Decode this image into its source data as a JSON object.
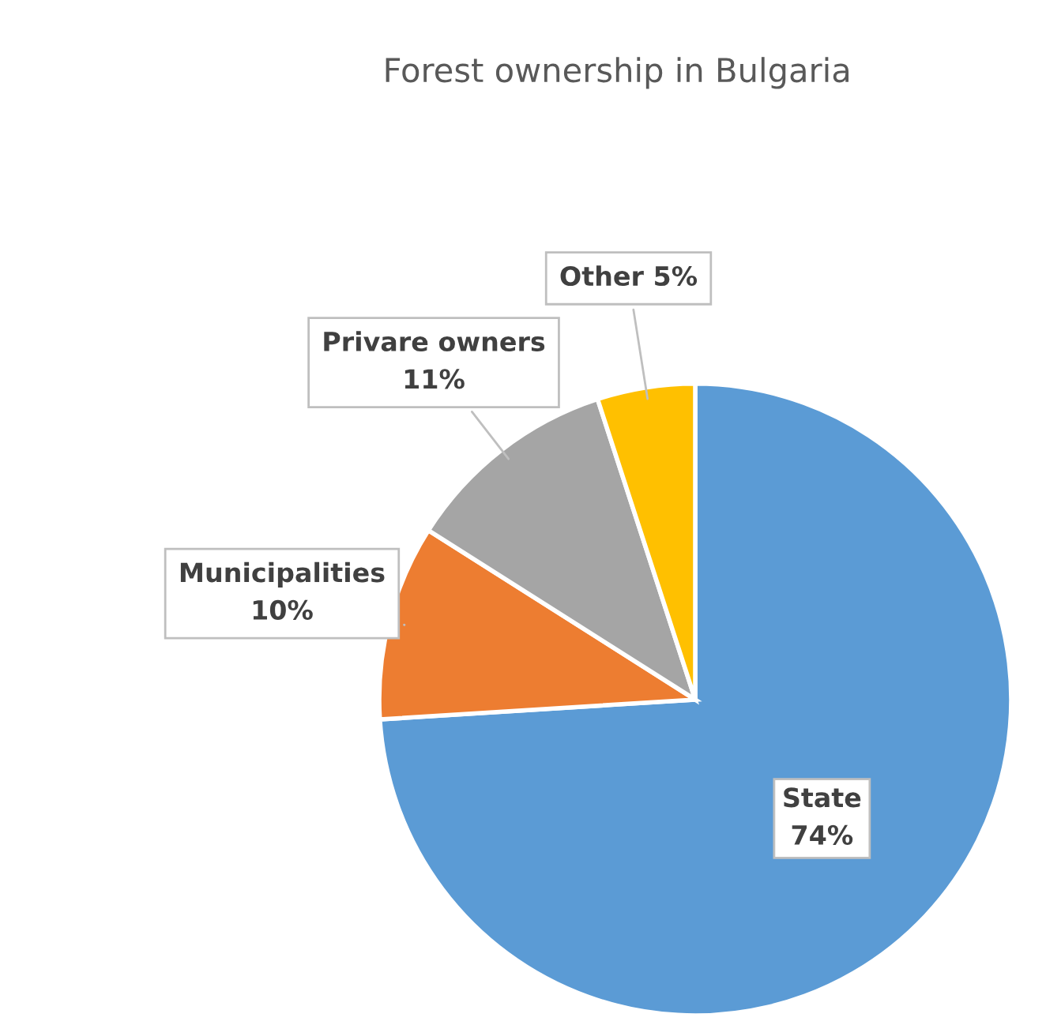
{
  "chart_data": {
    "type": "pie",
    "title": "Forest ownership in Bulgaria",
    "categories": [
      "State",
      "Municipalities",
      "Privare owners",
      "Other"
    ],
    "values": [
      74,
      10,
      11,
      5
    ],
    "colors": [
      "#5b9bd5",
      "#ed7d31",
      "#a5a5a5",
      "#ffc000"
    ],
    "value_labels": [
      "74%",
      "10%",
      "11%",
      "5%"
    ],
    "legend": false
  }
}
